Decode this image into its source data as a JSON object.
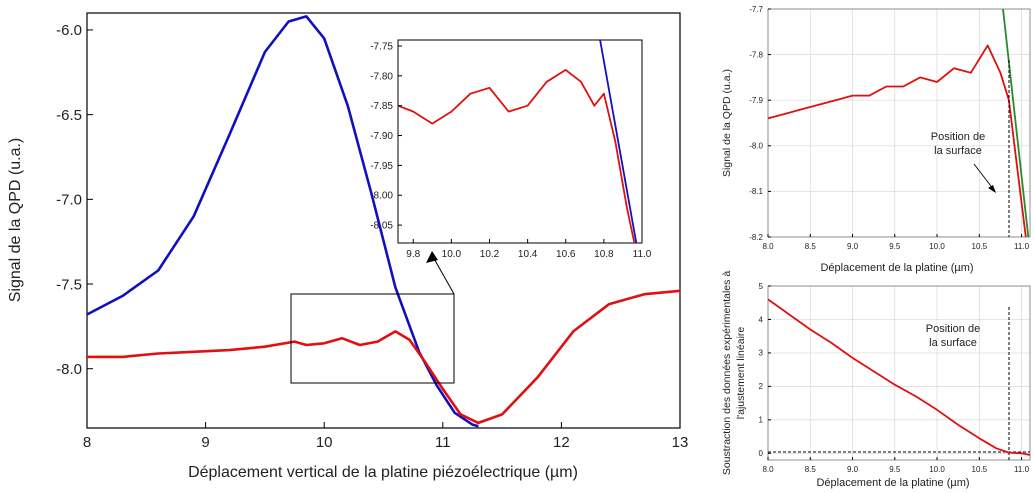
{
  "charts": {
    "main": {
      "ylabel": "Signal de la QPD (u.a.)",
      "xlabel": "Déplacement vertical de la platine piézoélectrique (µm)",
      "xticks": [
        "8",
        "9",
        "10",
        "11",
        "12",
        "13"
      ],
      "yticks": [
        "-6.0",
        "-6.5",
        "-7.0",
        "-7.5",
        "-8.0"
      ]
    },
    "inset": {
      "xticks": [
        "9.8",
        "10.0",
        "10.2",
        "10.4",
        "10.6",
        "10.8",
        "11.0"
      ],
      "yticks": [
        "-7.75",
        "-7.80",
        "-7.85",
        "-7.90",
        "-7.95",
        "-8.00",
        "-8.05"
      ]
    },
    "top_right": {
      "ylabel": "Signal de la QPD (u.a.)",
      "xlabel": "Déplacement  de la platine (µm)",
      "annotation": [
        "Position de",
        "la surface"
      ],
      "xticks": [
        "8.0",
        "8.5",
        "9.0",
        "9.5",
        "10.0",
        "10.5",
        "11.0"
      ],
      "yticks": [
        "-7.7",
        "-7.8",
        "-7.9",
        "-8.0",
        "-8.1",
        "-8.2"
      ]
    },
    "bottom_right": {
      "ylabel": [
        "Soustraction des données expérimentales  à",
        "l'ajustement linéaire"
      ],
      "xlabel": "Déplacement de la platine (µm)",
      "annotation": [
        "Position de",
        "la surface"
      ],
      "xticks": [
        "8.0",
        "8.5",
        "9.0",
        "9.5",
        "10.0",
        "10.5",
        "11.0"
      ],
      "yticks": [
        "5",
        "4",
        "3",
        "2",
        "1",
        "0"
      ]
    }
  },
  "chart_data": [
    {
      "type": "line",
      "id": "main",
      "xlim": [
        8,
        13
      ],
      "ylim": [
        -8.35,
        -5.9
      ],
      "series": [
        {
          "color": "#1010c0",
          "x": [
            8.0,
            8.3,
            8.6,
            8.9,
            9.2,
            9.5,
            9.7,
            9.85,
            10.0,
            10.2,
            10.4,
            10.6,
            10.8,
            10.95,
            11.1,
            11.25,
            11.3
          ],
          "y": [
            -7.68,
            -7.57,
            -7.42,
            -7.1,
            -6.62,
            -6.13,
            -5.95,
            -5.92,
            -6.05,
            -6.45,
            -6.97,
            -7.52,
            -7.9,
            -8.1,
            -8.26,
            -8.33,
            -8.34
          ]
        },
        {
          "color": "#e01010",
          "x": [
            8.0,
            8.3,
            8.6,
            8.9,
            9.2,
            9.5,
            9.75,
            9.85,
            10.0,
            10.15,
            10.3,
            10.45,
            10.6,
            10.72,
            10.85,
            11.0,
            11.15,
            11.3,
            11.5,
            11.8,
            12.1,
            12.4,
            12.7,
            13.0
          ],
          "y": [
            -7.93,
            -7.93,
            -7.91,
            -7.9,
            -7.89,
            -7.87,
            -7.84,
            -7.86,
            -7.85,
            -7.82,
            -7.86,
            -7.84,
            -7.78,
            -7.83,
            -7.96,
            -8.12,
            -8.27,
            -8.32,
            -8.27,
            -8.05,
            -7.78,
            -7.62,
            -7.56,
            -7.54
          ]
        }
      ]
    },
    {
      "type": "line",
      "id": "inset",
      "xlim": [
        9.72,
        11.0
      ],
      "ylim": [
        -8.08,
        -7.74
      ],
      "series": [
        {
          "color": "#1010c0",
          "x": [
            10.78,
            10.97
          ],
          "y": [
            -7.74,
            -8.08
          ]
        },
        {
          "color": "#e01010",
          "x": [
            9.72,
            9.8,
            9.9,
            10.0,
            10.1,
            10.2,
            10.3,
            10.4,
            10.5,
            10.6,
            10.68,
            10.75,
            10.8,
            10.86,
            10.92,
            10.96
          ],
          "y": [
            -7.85,
            -7.86,
            -7.88,
            -7.86,
            -7.83,
            -7.82,
            -7.86,
            -7.85,
            -7.81,
            -7.79,
            -7.81,
            -7.85,
            -7.83,
            -7.91,
            -8.02,
            -8.08
          ]
        }
      ]
    },
    {
      "type": "line",
      "id": "top_right",
      "xlim": [
        8.0,
        11.1
      ],
      "ylim": [
        -8.2,
        -7.7
      ],
      "series": [
        {
          "color": "#2a8a2a",
          "x": [
            10.78,
            11.08
          ],
          "y": [
            -7.7,
            -8.2
          ]
        },
        {
          "color": "#e01010",
          "x": [
            8.0,
            8.2,
            8.4,
            8.6,
            8.8,
            9.0,
            9.2,
            9.4,
            9.6,
            9.8,
            10.0,
            10.2,
            10.4,
            10.6,
            10.75,
            10.85,
            10.95,
            11.05
          ],
          "y": [
            -7.94,
            -7.93,
            -7.92,
            -7.91,
            -7.9,
            -7.89,
            -7.89,
            -7.87,
            -7.87,
            -7.85,
            -7.86,
            -7.83,
            -7.84,
            -7.78,
            -7.84,
            -7.9,
            -8.05,
            -8.2
          ]
        }
      ]
    },
    {
      "type": "line",
      "id": "bottom_right",
      "xlim": [
        8.0,
        11.1
      ],
      "ylim": [
        -0.2,
        5.0
      ],
      "series": [
        {
          "color": "#e01010",
          "x": [
            8.0,
            8.25,
            8.5,
            8.75,
            9.0,
            9.25,
            9.5,
            9.75,
            10.0,
            10.25,
            10.5,
            10.7,
            10.85,
            11.0,
            11.1
          ],
          "y": [
            4.6,
            4.15,
            3.7,
            3.3,
            2.85,
            2.45,
            2.05,
            1.7,
            1.3,
            0.85,
            0.45,
            0.15,
            0.02,
            0.0,
            -0.05
          ]
        }
      ]
    }
  ]
}
